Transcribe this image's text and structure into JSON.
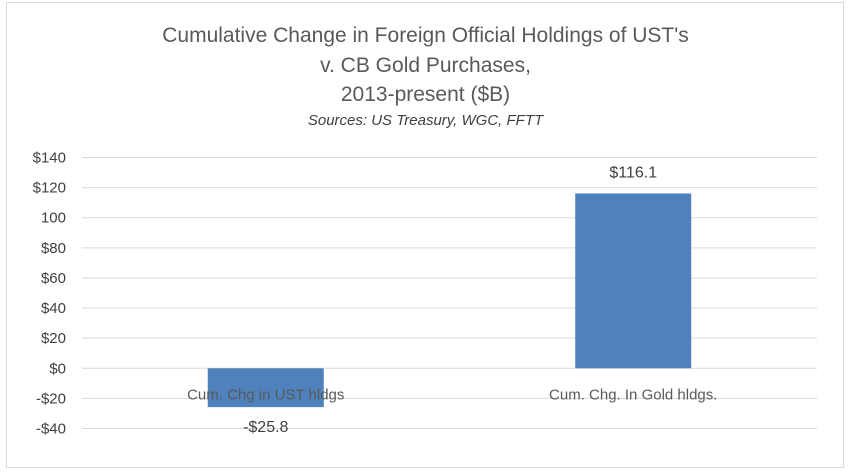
{
  "chart_data": {
    "type": "bar",
    "title_lines": [
      "Cumulative Change in Foreign Official Holdings of UST's",
      "v. CB Gold Purchases,",
      "2013-present ($B)"
    ],
    "subtitle": "Sources:  US Treasury, WGC, FFTT",
    "categories": [
      "Cum. Chg in UST hldgs",
      "Cum. Chg. In Gold hldgs."
    ],
    "values": [
      -25.8,
      116.1
    ],
    "data_labels": [
      "-$25.8",
      "$116.1"
    ],
    "ylim": [
      -40,
      140
    ],
    "y_ticks": [
      140,
      120,
      100,
      80,
      60,
      40,
      20,
      0,
      -20,
      -40
    ],
    "y_tick_labels": [
      "$140",
      "$120",
      "100",
      "$80",
      "$60",
      "$40",
      "$20",
      "$0",
      "-$20",
      "-$40"
    ],
    "xlabel": "",
    "ylabel": "",
    "grid": true,
    "legend": "none",
    "bar_color": "#4f81bd",
    "grid_color": "#d9d9d9"
  }
}
